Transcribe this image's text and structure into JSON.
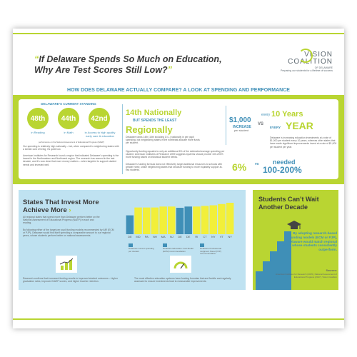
{
  "header": {
    "headline_line1": "If Delaware Spends So Much on Education,",
    "headline_line2": "Why Are Test Scores Still Low?",
    "open_quote": "“",
    "close_quote": "”",
    "logo_line1": "VISION",
    "logo_line2": "COALITION",
    "logo_line3": "OF DELAWARE",
    "logo_tagline": "Preparing our students for a lifetime of success"
  },
  "section_title": "HOW DOES DELAWARE ACTUALLY COMPARE? A LOOK AT SPENDING AND PERFORMANCE",
  "standing": {
    "title": "DELAWARE’S CURRENT STANDING",
    "items": [
      {
        "rank": "48th",
        "label": "in Reading"
      },
      {
        "rank": "44th",
        "label": "in Math"
      },
      {
        "rank": "42nd",
        "label": "in Access to high quality early care & education"
      }
    ],
    "footnote": "performance on the National Assessment of Educational Progress (NAEP)",
    "para1": "Our spending is relatively high nationally – but, when compared to neighboring states with a similar cost of living, it’s quite low.",
    "para2": "American Institutes for Research found a region that indicated Delaware’s spending is the lowest in the Northeastern and Northwest region. The research has warned in the last decade, and it’s now clear that more money matters – when targeted to support student needs and invested well."
  },
  "ranking": {
    "rank": "14th",
    "nationally": "Nationally",
    "but": "BUT SPENDS THE LEAST",
    "regionally": "Regionally",
    "para1": "Delaware ranks 14th (15th including D.C.) nationally in per pupil spending, but neighboring states in the northeast allocate more funds per student.",
    "para2": "Opportunity funding equates to only an additional 6% of the estimated average spending per student. American Institutes of Research 2009 suggests systems should provide 100-200% more funding based on individual student needs.",
    "para3": "Delaware’s funding formula does not effectively target additional resources to schools with greater need; unlike neighboring states that structure funding to more equitably support at-risk students."
  },
  "increase": {
    "amount": "$1,000",
    "increase_label": "INCREASE",
    "per_student": "per student",
    "vs": "VS",
    "every1": "every",
    "years": "10 Years",
    "every2": "EVERY",
    "year": "YEAR",
    "para": "Delaware is increasing education investments at a rate of $1,000 per student every 10 years, whereas other states that have made significant improvements invest at a rate of $1,000 per student per year."
  },
  "comparison": {
    "pct": "6%",
    "vs": "vs",
    "needed": "needed",
    "range": "100-200%"
  },
  "states_panel": {
    "title_line1": "States That Invest More",
    "title_line2": "Achieve More",
    "para1": "All regional states that spend more than Delaware perform better on the National Assessment of Educational Progress (NAEP) in each and reading.",
    "para2": "By following either of the target per pupil funding models recommended by AIR (ECM or PJP), Delaware would find itself spending a comparable amount to our regional peers, whose students perform better on national assessments.",
    "para3": "Research confirms that increased funding results in improved student outcomes – higher graduation rates, improved NAEP scores, and higher teacher retention.",
    "para4": "The most effective education systems have funding formulas that are flexible and regularly assessed to ensure investments lead to measurable improvements.",
    "legend": [
      "Delaware current spending per student",
      "Delaware Education Cost Model (ECM) recommendation",
      "Delaware Professional Judgment Panel (PJP) recommendation"
    ]
  },
  "chart_data": {
    "type": "bar",
    "categories": [
      "DE",
      "MD",
      "PA",
      "NH",
      "MA",
      "NJ",
      "DE",
      "DE",
      "RI",
      "CT",
      "NY",
      "VT",
      "NY"
    ],
    "values": [
      60,
      85,
      85,
      85,
      88,
      88,
      84,
      88,
      88,
      90,
      92,
      96,
      100
    ],
    "colors": [
      "#3f8fb7",
      "#f2ef3a",
      "#f2ef3a",
      "#f2ef3a",
      "#f2ef3a",
      "#f2ef3a",
      "#3f8fb7",
      "#3f8fb7",
      "#f2ef3a",
      "#f2ef3a",
      "#f2ef3a",
      "#f2ef3a",
      "#f2ef3a"
    ],
    "ylim": [
      0,
      100
    ]
  },
  "students_panel": {
    "title_line1": "Students Can’t Wait",
    "title_line2": "Another Decade",
    "quote": "By adopting research-based funding models (ECM or PJP), Delaware would match regional peers whose students consistently outperform.",
    "sources_label": "Sources:",
    "sources": "American Institutes for Research (2015), National Assessment of Educational Progress (2017), Vision Coalition"
  },
  "colors": {
    "green": "#b9d532",
    "blue": "#3f8fb7",
    "light_blue": "#bfe2f1",
    "yellow": "#f2ef3a"
  }
}
